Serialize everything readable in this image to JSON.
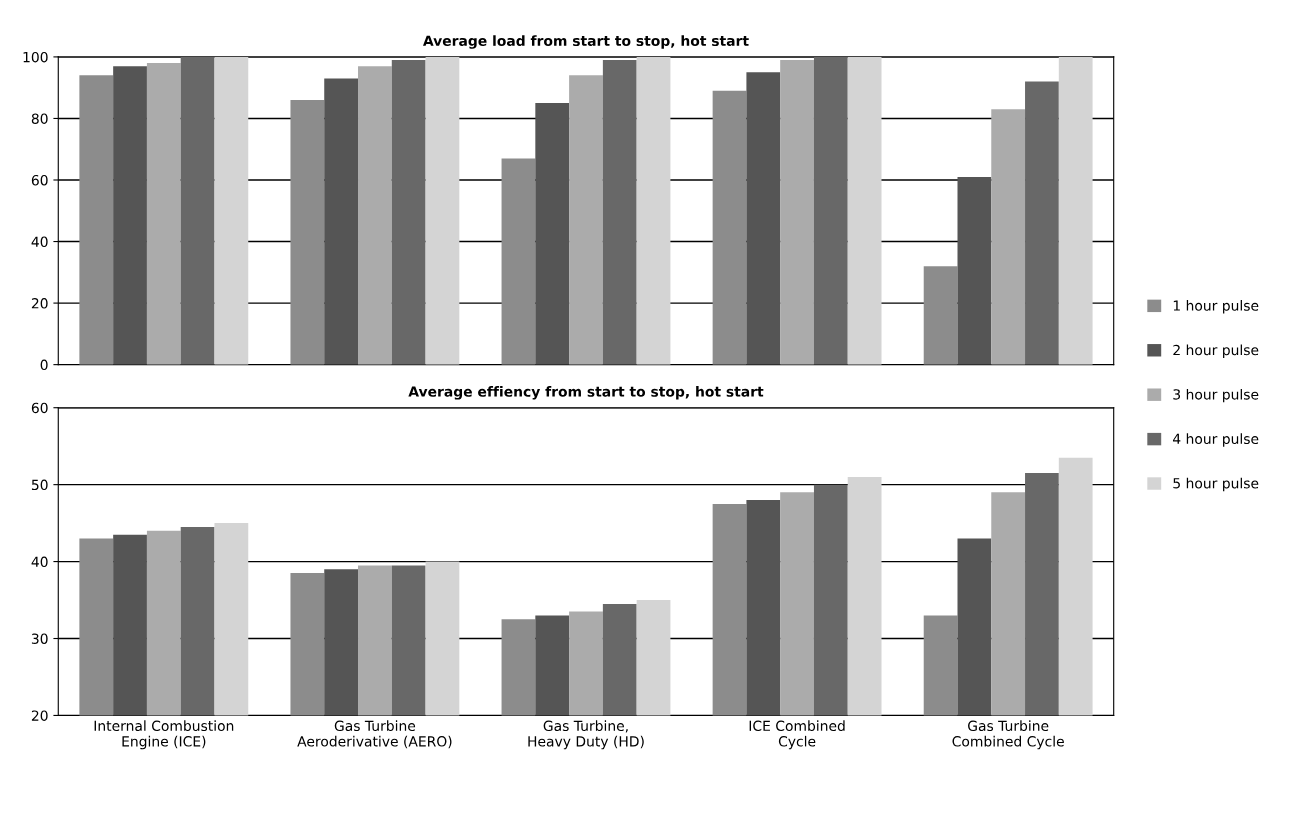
{
  "chart_data": [
    {
      "type": "bar",
      "title": "Average load from start to stop, hot start",
      "categories": [
        null,
        null,
        null,
        null,
        null
      ],
      "series": [
        {
          "name": "1 hour pulse",
          "color": "#8c8c8c",
          "values": [
            94,
            86,
            67,
            89,
            32
          ]
        },
        {
          "name": "2 hour pulse",
          "color": "#555555",
          "values": [
            97,
            93,
            85,
            95,
            61
          ]
        },
        {
          "name": "3 hour pulse",
          "color": "#ababab",
          "values": [
            98,
            97,
            94,
            99,
            83
          ]
        },
        {
          "name": "4 hour pulse",
          "color": "#686868",
          "values": [
            100,
            99,
            99,
            100,
            92
          ]
        },
        {
          "name": "5 hour pulse",
          "color": "#d4d4d4",
          "values": [
            100,
            100,
            100,
            100,
            100
          ]
        }
      ],
      "ylim": [
        0,
        100
      ],
      "yticks": [
        0,
        20,
        40,
        60,
        80,
        100
      ],
      "grid": "y",
      "legend": "right",
      "tick_labels": "y"
    },
    {
      "type": "bar",
      "title": "Average effiency from start to stop, hot start",
      "categories": [
        "Internal Combustion\nEngine (ICE)",
        "Gas Turbine\nAeroderivative (AERO)",
        "Gas Turbine,\nHeavy Duty (HD)",
        "ICE Combined\nCycle",
        "Gas Turbine\nCombined Cycle"
      ],
      "series": [
        {
          "color": "#8c8c8c",
          "values": [
            43,
            38.5,
            32.5,
            47.5,
            33
          ]
        },
        {
          "color": "#555555",
          "values": [
            43.5,
            39,
            33,
            48,
            43
          ]
        },
        {
          "color": "#ababab",
          "values": [
            44,
            39.5,
            33.5,
            49,
            49
          ]
        },
        {
          "color": "#686868",
          "values": [
            44.5,
            39.5,
            34.5,
            50,
            51.5
          ]
        },
        {
          "color": "#d4d4d4",
          "values": [
            45,
            40,
            35,
            51,
            53.5
          ]
        }
      ],
      "ylim": [
        20,
        60
      ],
      "yticks": [
        20,
        30,
        40,
        50,
        60
      ],
      "grid": "y"
    }
  ]
}
